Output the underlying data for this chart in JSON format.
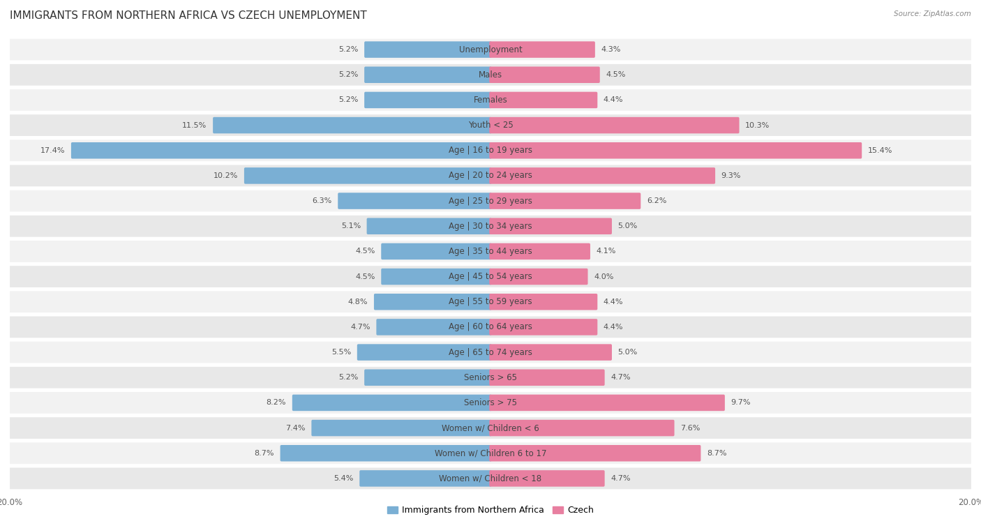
{
  "title": "IMMIGRANTS FROM NORTHERN AFRICA VS CZECH UNEMPLOYMENT",
  "source": "Source: ZipAtlas.com",
  "categories": [
    "Unemployment",
    "Males",
    "Females",
    "Youth < 25",
    "Age | 16 to 19 years",
    "Age | 20 to 24 years",
    "Age | 25 to 29 years",
    "Age | 30 to 34 years",
    "Age | 35 to 44 years",
    "Age | 45 to 54 years",
    "Age | 55 to 59 years",
    "Age | 60 to 64 years",
    "Age | 65 to 74 years",
    "Seniors > 65",
    "Seniors > 75",
    "Women w/ Children < 6",
    "Women w/ Children 6 to 17",
    "Women w/ Children < 18"
  ],
  "left_values": [
    5.2,
    5.2,
    5.2,
    11.5,
    17.4,
    10.2,
    6.3,
    5.1,
    4.5,
    4.5,
    4.8,
    4.7,
    5.5,
    5.2,
    8.2,
    7.4,
    8.7,
    5.4
  ],
  "right_values": [
    4.3,
    4.5,
    4.4,
    10.3,
    15.4,
    9.3,
    6.2,
    5.0,
    4.1,
    4.0,
    4.4,
    4.4,
    5.0,
    4.7,
    9.7,
    7.6,
    8.7,
    4.7
  ],
  "left_color": "#7aafd4",
  "right_color": "#e87fa0",
  "left_label": "Immigrants from Northern Africa",
  "right_label": "Czech",
  "axis_limit": 20.0,
  "bg_color": "#ffffff",
  "row_color_odd": "#f2f2f2",
  "row_color_even": "#e8e8e8",
  "title_fontsize": 11,
  "label_fontsize": 8.5,
  "value_fontsize": 8,
  "legend_fontsize": 9,
  "axis_label_fontsize": 8.5
}
